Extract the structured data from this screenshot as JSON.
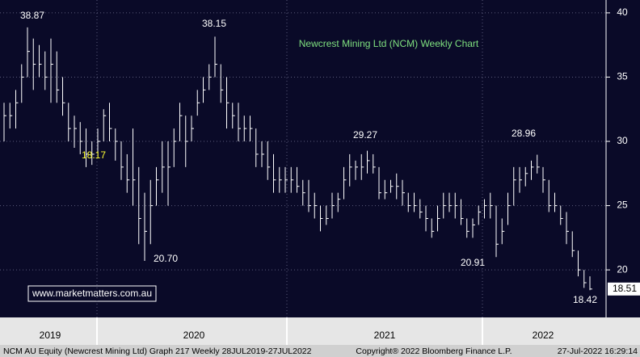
{
  "chart_data": {
    "type": "ohlc",
    "title": "Newcrest Mining Ltd (NCM) Weekly Chart",
    "watermark": "www.marketmatters.com.au",
    "footer_left": "NCM AU Equity (Newcrest Mining Ltd) Graph 217  Weekly 28JUL2019-27JUL2022",
    "footer_center": "Copyright® 2022 Bloomberg Finance L.P.",
    "footer_right": "27-Jul-2022 16:29:14",
    "x_labels": [
      "2019",
      "2020",
      "2021",
      "2022"
    ],
    "ylim": [
      16.3,
      41.0
    ],
    "yticks": [
      20,
      25,
      30,
      35,
      40
    ],
    "grid": true,
    "color": "#ffffff",
    "last_price": 18.51,
    "annotations": [
      "38.87",
      "38.15",
      "29.27",
      "20.70",
      "18.17",
      "20.91",
      "28.96",
      "18.42"
    ],
    "high": [
      33,
      33,
      34,
      36,
      38.87,
      38,
      37.5,
      37,
      38,
      37,
      35,
      33,
      32,
      31.5,
      31,
      30,
      31,
      32.5,
      33,
      31,
      30,
      29,
      31,
      28,
      26,
      27,
      28,
      30,
      30,
      31,
      33,
      32,
      32,
      34,
      35,
      36,
      38.15,
      36,
      35,
      33,
      33,
      32,
      32,
      31,
      30,
      30,
      29,
      28,
      28,
      28,
      28,
      27,
      27,
      26,
      25,
      25,
      26,
      26,
      28,
      29,
      28.5,
      29,
      29.27,
      29,
      28,
      27,
      27,
      27.5,
      27,
      26,
      26,
      25.5,
      25,
      24,
      25,
      26,
      26,
      26,
      25.5,
      24,
      24,
      25,
      25.5,
      26,
      25,
      24,
      26,
      28,
      28,
      28,
      28.5,
      28.96,
      28,
      27,
      26,
      25,
      24.5,
      23,
      21.5,
      20,
      19.5
    ],
    "low": [
      30,
      31,
      31,
      33,
      35,
      34,
      35,
      34,
      33,
      33,
      32,
      30,
      29.5,
      29,
      28,
      28.17,
      29,
      30,
      30,
      28.5,
      27,
      26,
      25,
      22,
      20.7,
      22,
      25,
      26,
      25,
      28,
      30,
      28,
      30,
      32,
      33,
      34,
      35,
      33,
      31,
      31,
      30,
      30,
      30,
      28,
      28,
      27,
      26,
      26,
      26,
      26,
      26,
      25,
      24.5,
      24,
      23,
      23.5,
      24,
      24.5,
      25.5,
      26.5,
      27,
      27,
      27.5,
      27.5,
      25.5,
      25.5,
      26,
      25.5,
      25,
      24.5,
      24.5,
      24,
      23,
      22.5,
      23,
      24,
      24.5,
      24,
      23.5,
      22.5,
      22.5,
      23.5,
      24,
      24,
      21,
      22,
      23.5,
      25,
      26,
      26.5,
      27,
      27.5,
      26,
      24.5,
      24.5,
      23.5,
      22,
      21,
      19.5,
      18.6,
      18.42
    ],
    "close": [
      32,
      32,
      33,
      35,
      37,
      36,
      36,
      35,
      36,
      34,
      33,
      31,
      31,
      30,
      29,
      29,
      30,
      32,
      31,
      30,
      28,
      27,
      27,
      24,
      23,
      25,
      27,
      28,
      28,
      30,
      32,
      30,
      31,
      33,
      34,
      35,
      36,
      34,
      33,
      32,
      31,
      31,
      31,
      29,
      29,
      28,
      27,
      27,
      27,
      27,
      26.5,
      26,
      25,
      25,
      24,
      24,
      25,
      25.5,
      27,
      28,
      28,
      28,
      28.5,
      28,
      26,
      26,
      26.5,
      26.5,
      26,
      25,
      25,
      24.5,
      24,
      23,
      24,
      25,
      25,
      25,
      24,
      23,
      23.5,
      24.5,
      25,
      25,
      22,
      23,
      25,
      27,
      27,
      27.5,
      28,
      28,
      27,
      25,
      25,
      24,
      23,
      21.5,
      20,
      19,
      18.51
    ]
  }
}
